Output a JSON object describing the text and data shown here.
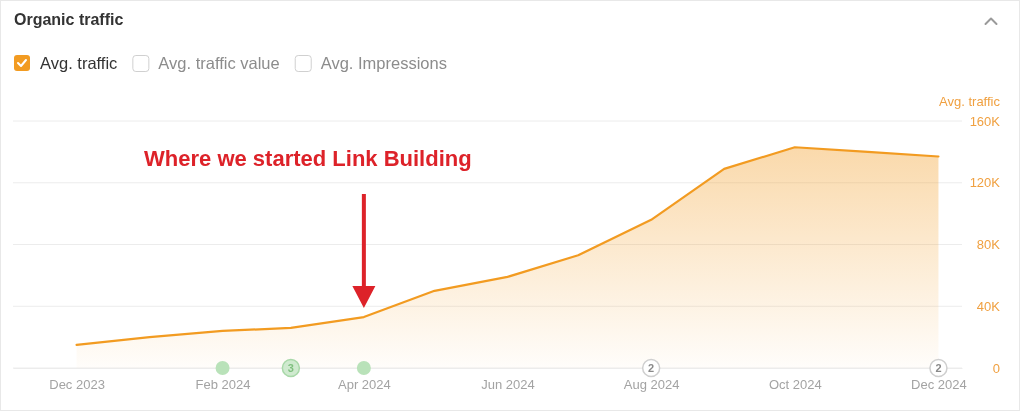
{
  "chart_data": {
    "type": "area",
    "title": "Organic traffic",
    "ylabel": "Avg. traffic",
    "x": [
      "2023-12",
      "2024-01",
      "2024-02",
      "2024-03",
      "2024-04",
      "2024-05",
      "2024-06",
      "2024-07",
      "2024-08",
      "2024-09",
      "2024-10",
      "2024-11",
      "2024-12"
    ],
    "series": [
      {
        "name": "Avg. traffic",
        "color": "#f29b21",
        "values": [
          15000,
          20000,
          24000,
          26000,
          33000,
          50000,
          59000,
          73000,
          96000,
          129000,
          143000,
          140000,
          137000
        ]
      }
    ],
    "xlim": [
      "2023-11-04",
      "2024-12-11"
    ],
    "xticks": [
      {
        "value": "2023-12",
        "label": "Dec 2023"
      },
      {
        "value": "2024-02",
        "label": "Feb 2024"
      },
      {
        "value": "2024-04",
        "label": "Apr 2024"
      },
      {
        "value": "2024-06",
        "label": "Jun 2024"
      },
      {
        "value": "2024-08",
        "label": "Aug 2024"
      },
      {
        "value": "2024-10",
        "label": "Oct 2024"
      },
      {
        "value": "2024-12",
        "label": "Dec 2024"
      }
    ],
    "ylim": [
      0,
      160000
    ],
    "yticks": [
      0,
      {
        "value": 40000,
        "label": "40K"
      },
      {
        "value": 80000,
        "label": "80K"
      },
      {
        "value": 120000,
        "label": "120K"
      },
      {
        "value": 160000,
        "label": "160K"
      }
    ],
    "grid": "y",
    "legend": "top left",
    "annotations": [
      "Where we started Link Building",
      {
        "text": "3",
        "x": "2024-03",
        "y": 0
      },
      {
        "text": "2",
        "x": "2024-08",
        "y": 0
      },
      {
        "text": "2",
        "x": "2024-12",
        "y": 0
      },
      "Avg. traffic value",
      "Avg. Impressions"
    ]
  }
}
